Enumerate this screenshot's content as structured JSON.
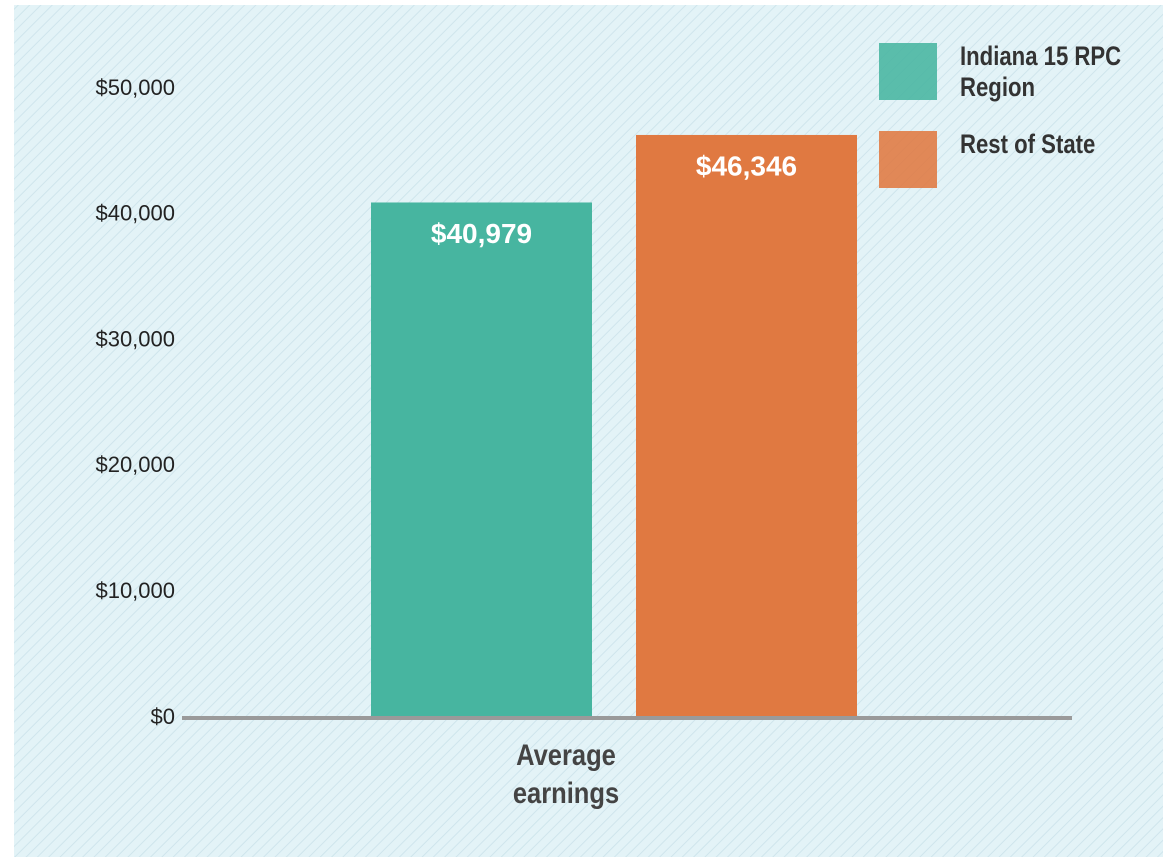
{
  "chart_data": {
    "type": "bar",
    "categories": [
      "Average earnings"
    ],
    "series": [
      {
        "name": "Indiana 15 RPC Region",
        "color": "#47b5a0",
        "values": [
          40979
        ],
        "value_labels": [
          "$40,979"
        ]
      },
      {
        "name": "Rest of State",
        "color": "#e07941",
        "values": [
          46346
        ],
        "value_labels": [
          "$46,346"
        ]
      }
    ],
    "ylim": [
      0,
      50000
    ],
    "yticks": [
      {
        "value": 0,
        "label": "$0"
      },
      {
        "value": 10000,
        "label": "$10,000"
      },
      {
        "value": 20000,
        "label": "$20,000"
      },
      {
        "value": 30000,
        "label": "$30,000"
      },
      {
        "value": 40000,
        "label": "$40,000"
      },
      {
        "value": 50000,
        "label": "$50,000"
      }
    ],
    "grid": false,
    "legend": "top-right"
  }
}
